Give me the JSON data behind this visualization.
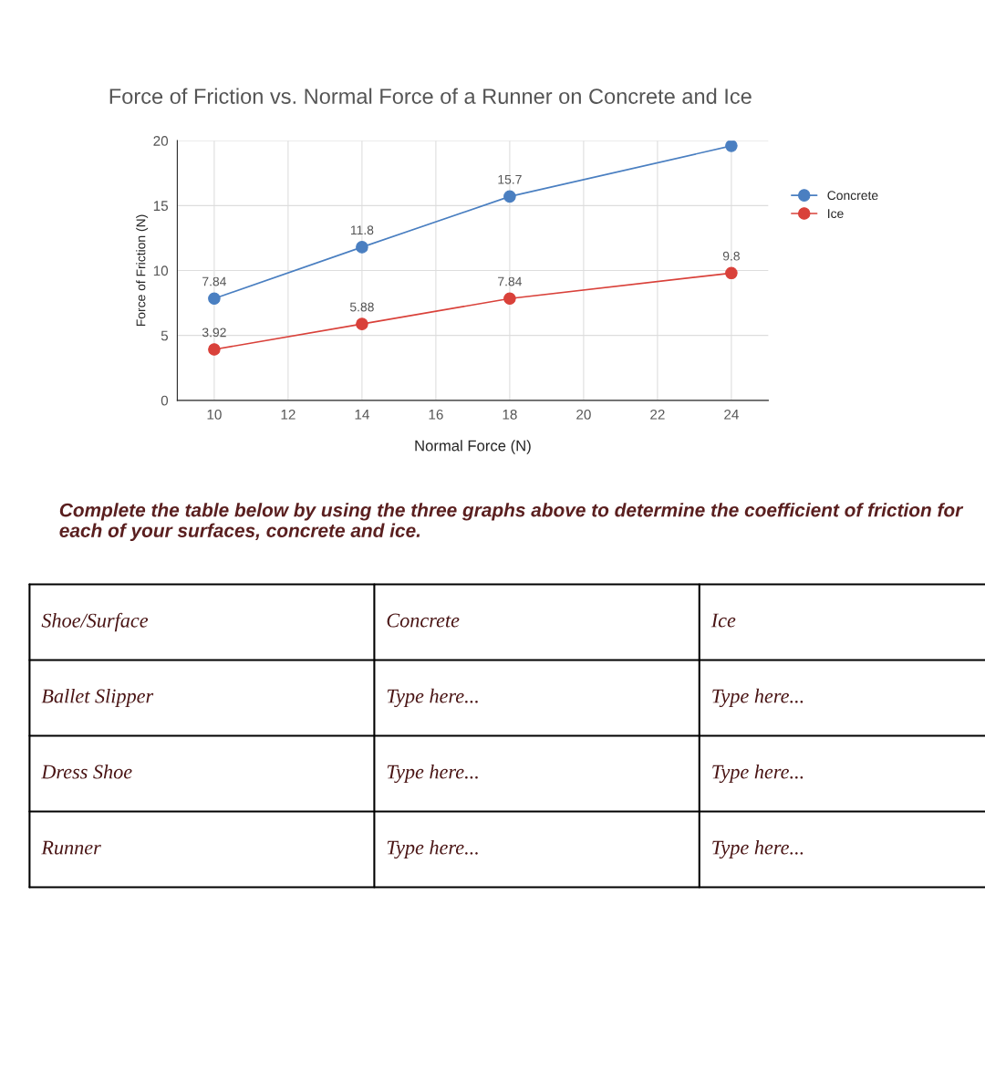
{
  "chart_data": {
    "type": "line",
    "title": "Force of Friction vs. Normal Force of a Runner on Concrete and Ice",
    "xlabel": "Normal Force (N)",
    "ylabel": "Force of Friction (N)",
    "x": [
      10,
      14,
      18,
      24
    ],
    "series": [
      {
        "name": "Concrete",
        "color": "#4a7fc1",
        "values": [
          7.84,
          11.8,
          15.7,
          19.6
        ],
        "value_labels": [
          "7.84",
          "11.8",
          "15.7",
          null
        ]
      },
      {
        "name": "Ice",
        "color": "#d9413a",
        "values": [
          3.92,
          5.88,
          7.84,
          9.8
        ],
        "value_labels": [
          "3.92",
          "5.88",
          "7.84",
          "9.8"
        ]
      }
    ],
    "xlim": [
      9,
      25
    ],
    "xticks": [
      10,
      12,
      14,
      16,
      18,
      20,
      22,
      24
    ],
    "ylim": [
      0,
      20
    ],
    "yticks": [
      0,
      5,
      10,
      15,
      20
    ],
    "grid": true,
    "legend": "right",
    "marker": "circle",
    "line_style": "solid",
    "annotations": [
      "Complete the table below by using the three graphs above to determine the coefficient of friction for each of your surfaces, concrete and ice.",
      "Shoe/Surface",
      "Concrete",
      "Ice",
      "Ballet Slipper",
      "Type here...",
      "Type here...",
      "Dress Shoe",
      "Type here...",
      "Type here...",
      "Runner",
      "Type here...",
      "Type here..."
    ]
  }
}
